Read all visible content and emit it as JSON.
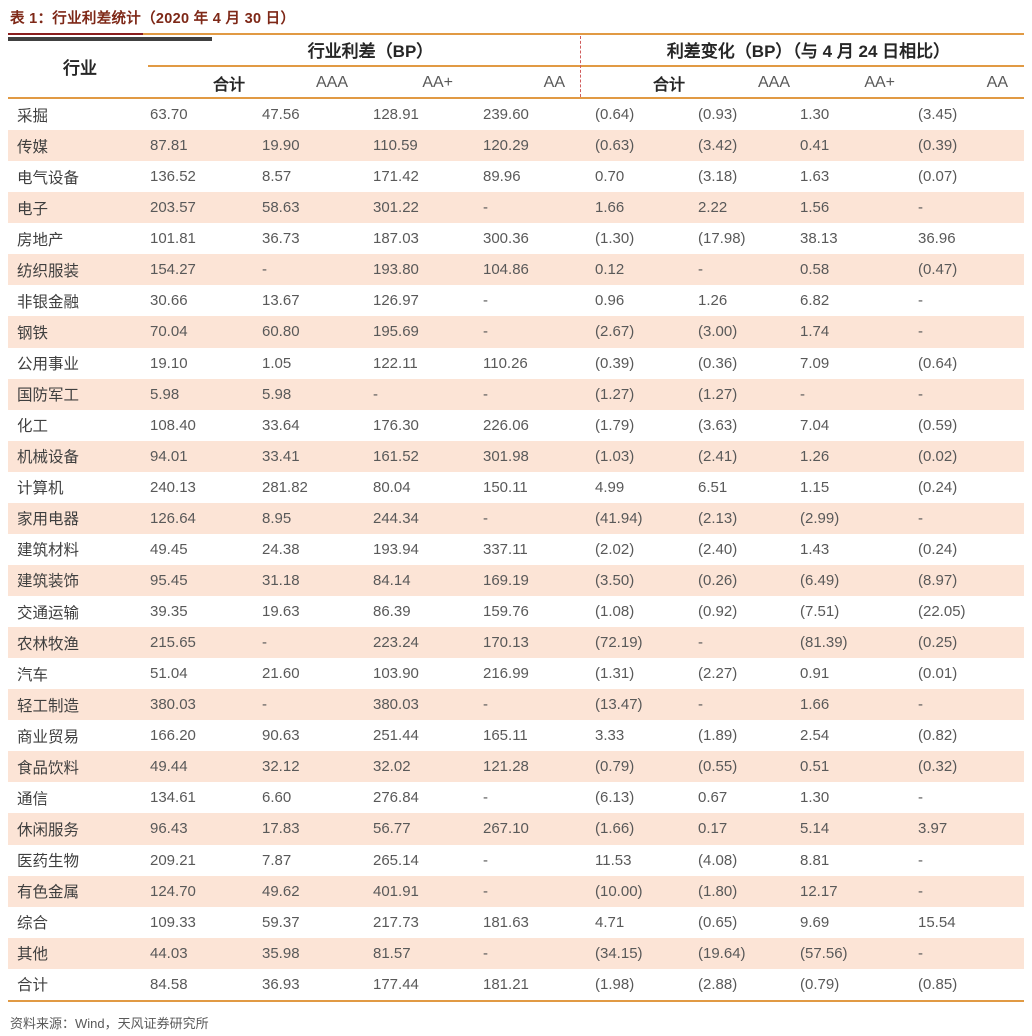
{
  "title": {
    "text": "表 1：行业利差统计（2020 年 4 月 30 日）"
  },
  "table": {
    "industry_header": "行业",
    "groups": [
      {
        "label": "行业利差（BP）",
        "sub": [
          "合计",
          "AAA",
          "AA+",
          "AA"
        ]
      },
      {
        "label": "利差变化（BP）（与 4 月 24 日相比）",
        "sub": [
          "合计",
          "AAA",
          "AA+",
          "AA"
        ]
      }
    ],
    "rows": [
      {
        "industry": "采掘",
        "values": [
          "63.70",
          "47.56",
          "128.91",
          "239.60",
          "(0.64)",
          "(0.93)",
          "1.30",
          "(3.45)"
        ]
      },
      {
        "industry": "传媒",
        "values": [
          "87.81",
          "19.90",
          "110.59",
          "120.29",
          "(0.63)",
          "(3.42)",
          "0.41",
          "(0.39)"
        ]
      },
      {
        "industry": "电气设备",
        "values": [
          "136.52",
          "8.57",
          "171.42",
          "89.96",
          "0.70",
          "(3.18)",
          "1.63",
          "(0.07)"
        ]
      },
      {
        "industry": "电子",
        "values": [
          "203.57",
          "58.63",
          "301.22",
          "-",
          "1.66",
          "2.22",
          "1.56",
          "-"
        ]
      },
      {
        "industry": "房地产",
        "values": [
          "101.81",
          "36.73",
          "187.03",
          "300.36",
          "(1.30)",
          "(17.98)",
          "38.13",
          "36.96"
        ]
      },
      {
        "industry": "纺织服装",
        "values": [
          "154.27",
          "-",
          "193.80",
          "104.86",
          "0.12",
          "-",
          "0.58",
          "(0.47)"
        ]
      },
      {
        "industry": "非银金融",
        "values": [
          "30.66",
          "13.67",
          "126.97",
          "-",
          "0.96",
          "1.26",
          "6.82",
          "-"
        ]
      },
      {
        "industry": "钢铁",
        "values": [
          "70.04",
          "60.80",
          "195.69",
          "-",
          "(2.67)",
          "(3.00)",
          "1.74",
          "-"
        ]
      },
      {
        "industry": "公用事业",
        "values": [
          "19.10",
          "1.05",
          "122.11",
          "110.26",
          "(0.39)",
          "(0.36)",
          "7.09",
          "(0.64)"
        ]
      },
      {
        "industry": "国防军工",
        "values": [
          "5.98",
          "5.98",
          "-",
          "-",
          "(1.27)",
          "(1.27)",
          "-",
          "-"
        ]
      },
      {
        "industry": "化工",
        "values": [
          "108.40",
          "33.64",
          "176.30",
          "226.06",
          "(1.79)",
          "(3.63)",
          "7.04",
          "(0.59)"
        ]
      },
      {
        "industry": "机械设备",
        "values": [
          "94.01",
          "33.41",
          "161.52",
          "301.98",
          "(1.03)",
          "(2.41)",
          "1.26",
          "(0.02)"
        ]
      },
      {
        "industry": "计算机",
        "values": [
          "240.13",
          "281.82",
          "80.04",
          "150.11",
          "4.99",
          "6.51",
          "1.15",
          "(0.24)"
        ]
      },
      {
        "industry": "家用电器",
        "values": [
          "126.64",
          "8.95",
          "244.34",
          "-",
          "(41.94)",
          "(2.13)",
          "(2.99)",
          "-"
        ]
      },
      {
        "industry": "建筑材料",
        "values": [
          "49.45",
          "24.38",
          "193.94",
          "337.11",
          "(2.02)",
          "(2.40)",
          "1.43",
          "(0.24)"
        ]
      },
      {
        "industry": "建筑装饰",
        "values": [
          "95.45",
          "31.18",
          "84.14",
          "169.19",
          "(3.50)",
          "(0.26)",
          "(6.49)",
          "(8.97)"
        ]
      },
      {
        "industry": "交通运输",
        "values": [
          "39.35",
          "19.63",
          "86.39",
          "159.76",
          "(1.08)",
          "(0.92)",
          "(7.51)",
          "(22.05)"
        ]
      },
      {
        "industry": "农林牧渔",
        "values": [
          "215.65",
          "-",
          "223.24",
          "170.13",
          "(72.19)",
          "-",
          "(81.39)",
          "(0.25)"
        ]
      },
      {
        "industry": "汽车",
        "values": [
          "51.04",
          "21.60",
          "103.90",
          "216.99",
          "(1.31)",
          "(2.27)",
          "0.91",
          "(0.01)"
        ]
      },
      {
        "industry": "轻工制造",
        "values": [
          "380.03",
          "-",
          "380.03",
          "-",
          "(13.47)",
          "-",
          "1.66",
          "-"
        ]
      },
      {
        "industry": "商业贸易",
        "values": [
          "166.20",
          "90.63",
          "251.44",
          "165.11",
          "3.33",
          "(1.89)",
          "2.54",
          "(0.82)"
        ]
      },
      {
        "industry": "食品饮料",
        "values": [
          "49.44",
          "32.12",
          "32.02",
          "121.28",
          "(0.79)",
          "(0.55)",
          "0.51",
          "(0.32)"
        ]
      },
      {
        "industry": "通信",
        "values": [
          "134.61",
          "6.60",
          "276.84",
          "-",
          "(6.13)",
          "0.67",
          "1.30",
          "-"
        ]
      },
      {
        "industry": "休闲服务",
        "values": [
          "96.43",
          "17.83",
          "56.77",
          "267.10",
          "(1.66)",
          "0.17",
          "5.14",
          "3.97"
        ]
      },
      {
        "industry": "医药生物",
        "values": [
          "209.21",
          "7.87",
          "265.14",
          "-",
          "11.53",
          "(4.08)",
          "8.81",
          "-"
        ]
      },
      {
        "industry": "有色金属",
        "values": [
          "124.70",
          "49.62",
          "401.91",
          "-",
          "(10.00)",
          "(1.80)",
          "12.17",
          "-"
        ]
      },
      {
        "industry": "综合",
        "values": [
          "109.33",
          "59.37",
          "217.73",
          "181.63",
          "4.71",
          "(0.65)",
          "9.69",
          "15.54"
        ]
      },
      {
        "industry": "其他",
        "values": [
          "44.03",
          "35.98",
          "81.57",
          "-",
          "(34.15)",
          "(19.64)",
          "(57.56)",
          "-"
        ]
      },
      {
        "industry": "合计",
        "values": [
          "84.58",
          "36.93",
          "177.44",
          "181.21",
          "(1.98)",
          "(2.88)",
          "(0.79)",
          "(0.85)"
        ]
      }
    ]
  },
  "footer": {
    "source": "资料来源：Wind，天风证券研究所"
  },
  "colors": {
    "title_red": "#7E2817",
    "rule_maroon": "#8A1E1E",
    "rule_orange": "#E19A44",
    "row_peach": "#FCE4D6",
    "divider_dashed_red": "#D05C5C",
    "header_dark_bar": "#404040",
    "text_dark": "#262626",
    "text_gray": "#595959"
  }
}
